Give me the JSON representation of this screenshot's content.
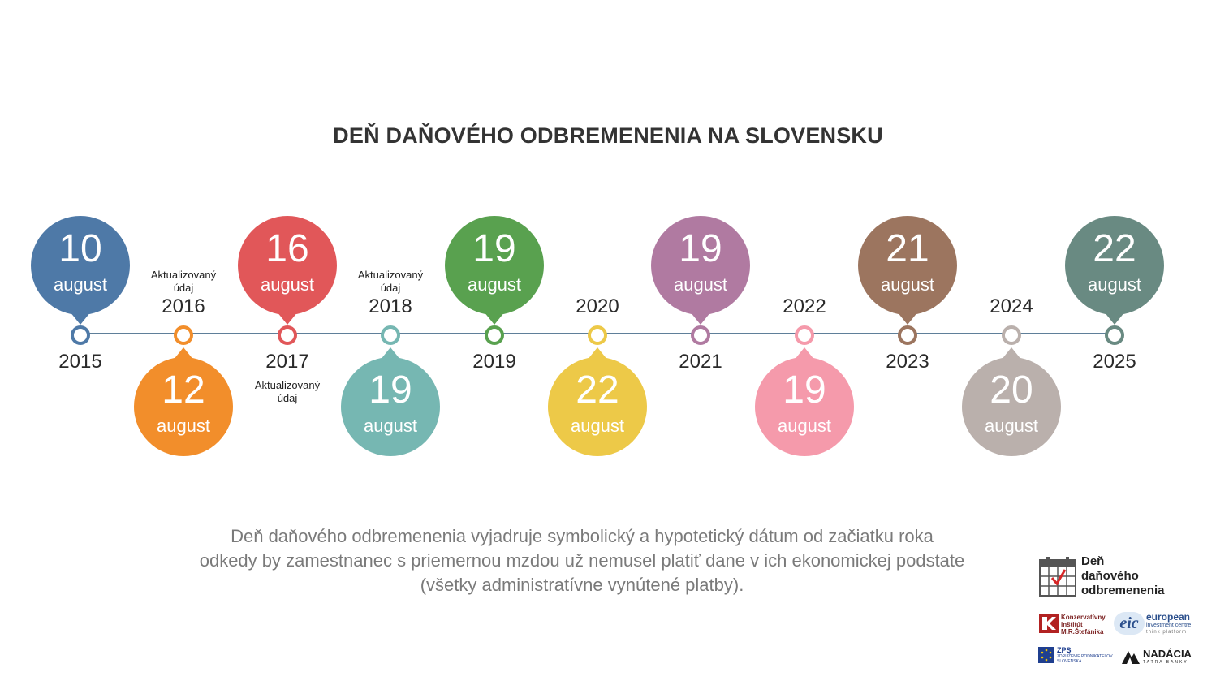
{
  "title": "DEŇ DAŇOVÉHO ODBREMENENIA NA SLOVENSKU",
  "timeline": [
    {
      "year": "2015",
      "day": "10",
      "month": "august",
      "color": "#4e79a7",
      "position": "up"
    },
    {
      "year": "2016",
      "day": "12",
      "month": "august",
      "color": "#f28e2b",
      "position": "down",
      "note": "Aktualizovaný údaj"
    },
    {
      "year": "2017",
      "day": "16",
      "month": "august",
      "color": "#e15759",
      "position": "up",
      "note": "Aktualizovaný údaj"
    },
    {
      "year": "2018",
      "day": "19",
      "month": "august",
      "color": "#76b7b2",
      "position": "down",
      "note": "Aktualizovaný údaj"
    },
    {
      "year": "2019",
      "day": "19",
      "month": "august",
      "color": "#59a14f",
      "position": "up"
    },
    {
      "year": "2020",
      "day": "22",
      "month": "august",
      "color": "#edc948",
      "position": "down"
    },
    {
      "year": "2021",
      "day": "19",
      "month": "august",
      "color": "#b07aa1",
      "position": "up"
    },
    {
      "year": "2022",
      "day": "19",
      "month": "august",
      "color": "#f59aab",
      "position": "down"
    },
    {
      "year": "2023",
      "day": "21",
      "month": "august",
      "color": "#9c755f",
      "position": "up"
    },
    {
      "year": "2024",
      "day": "20",
      "month": "august",
      "color": "#bab0ac",
      "position": "down"
    },
    {
      "year": "2025",
      "day": "22",
      "month": "august",
      "color": "#698a82",
      "position": "up"
    }
  ],
  "description": {
    "line1": "Deň daňového odbremenenia vyjadruje symbolický a hypotetický dátum od začiatku roka",
    "line2": "odkedy by zamestnanec s priemernou mzdou už nemusel platiť dane v ich ekonomickej podstate",
    "line3": "(všetky administratívne vynútené platby)."
  },
  "logos": {
    "main": {
      "line1": "Deň",
      "line2": "daňového",
      "line3": "odbremenenia"
    },
    "kimrs": {
      "line1": "Konzervatívny",
      "line2": "inštitút",
      "line3": "M.R.Štefánika"
    },
    "eic": {
      "mark": "eic",
      "line1": "european",
      "line2": "investment centre",
      "line3": "think platform"
    },
    "zps": {
      "line1": "ZPS",
      "line2": "ZDRUŽENIE PODNIKATEĽOV",
      "line3": "SLOVENSKA"
    },
    "nadacia": {
      "line1": "NADÁCIA",
      "line2": "TATRA BANKY"
    }
  }
}
